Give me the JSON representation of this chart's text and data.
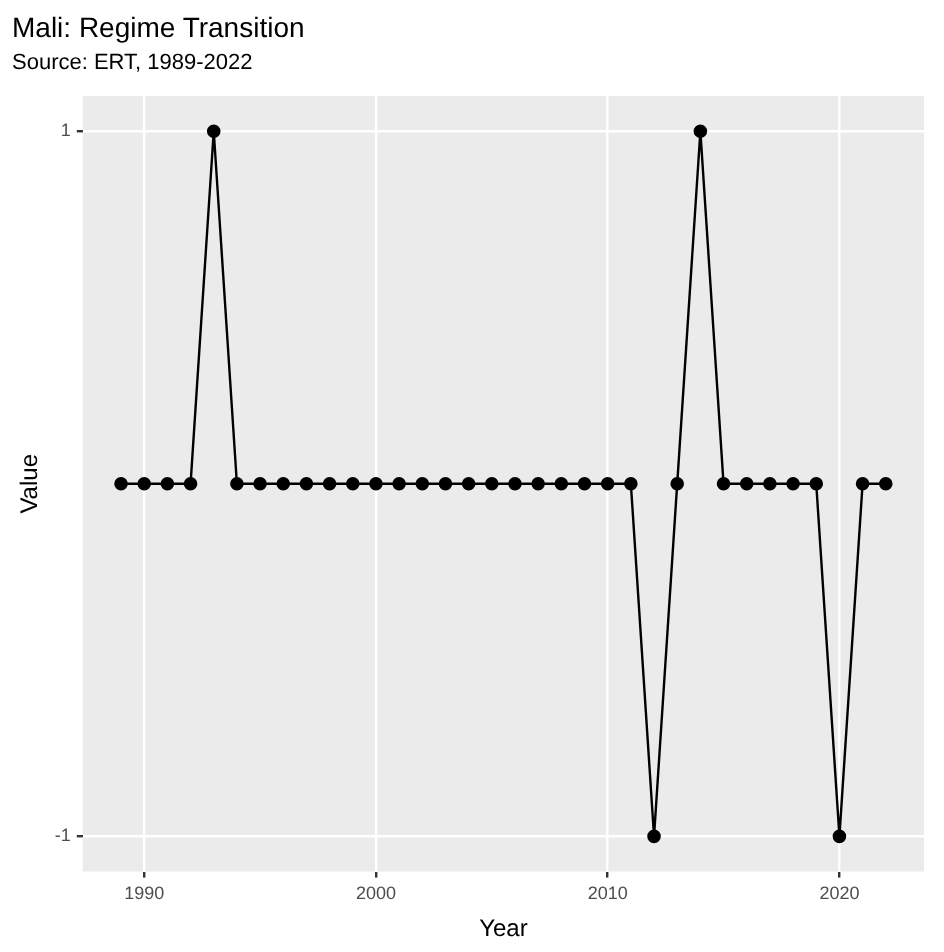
{
  "chart_data": {
    "type": "line",
    "title": "Mali: Regime Transition",
    "subtitle": "Source: ERT, 1989-2022",
    "xlabel": "Year",
    "ylabel": "Value",
    "x": [
      1989,
      1990,
      1991,
      1992,
      1993,
      1994,
      1995,
      1996,
      1997,
      1998,
      1999,
      2000,
      2001,
      2002,
      2003,
      2004,
      2005,
      2006,
      2007,
      2008,
      2009,
      2010,
      2011,
      2012,
      2013,
      2014,
      2015,
      2016,
      2017,
      2018,
      2019,
      2020,
      2021,
      2022
    ],
    "series": [
      {
        "color": "#000000",
        "values": [
          0,
          0,
          0,
          0,
          1,
          0,
          0,
          0,
          0,
          0,
          0,
          0,
          0,
          0,
          0,
          0,
          0,
          0,
          0,
          0,
          0,
          0,
          0,
          -1,
          0,
          1,
          0,
          0,
          0,
          0,
          0,
          -1,
          0,
          0
        ]
      }
    ],
    "xlim": [
      1987.35,
      2023.65
    ],
    "ylim": [
      -1.1,
      1.1
    ],
    "xticks": [
      1990,
      2000,
      2010,
      2020
    ],
    "yticks": [
      -1,
      1
    ],
    "grid": true,
    "legend": false,
    "marker": "circle",
    "line_style": "solid"
  }
}
